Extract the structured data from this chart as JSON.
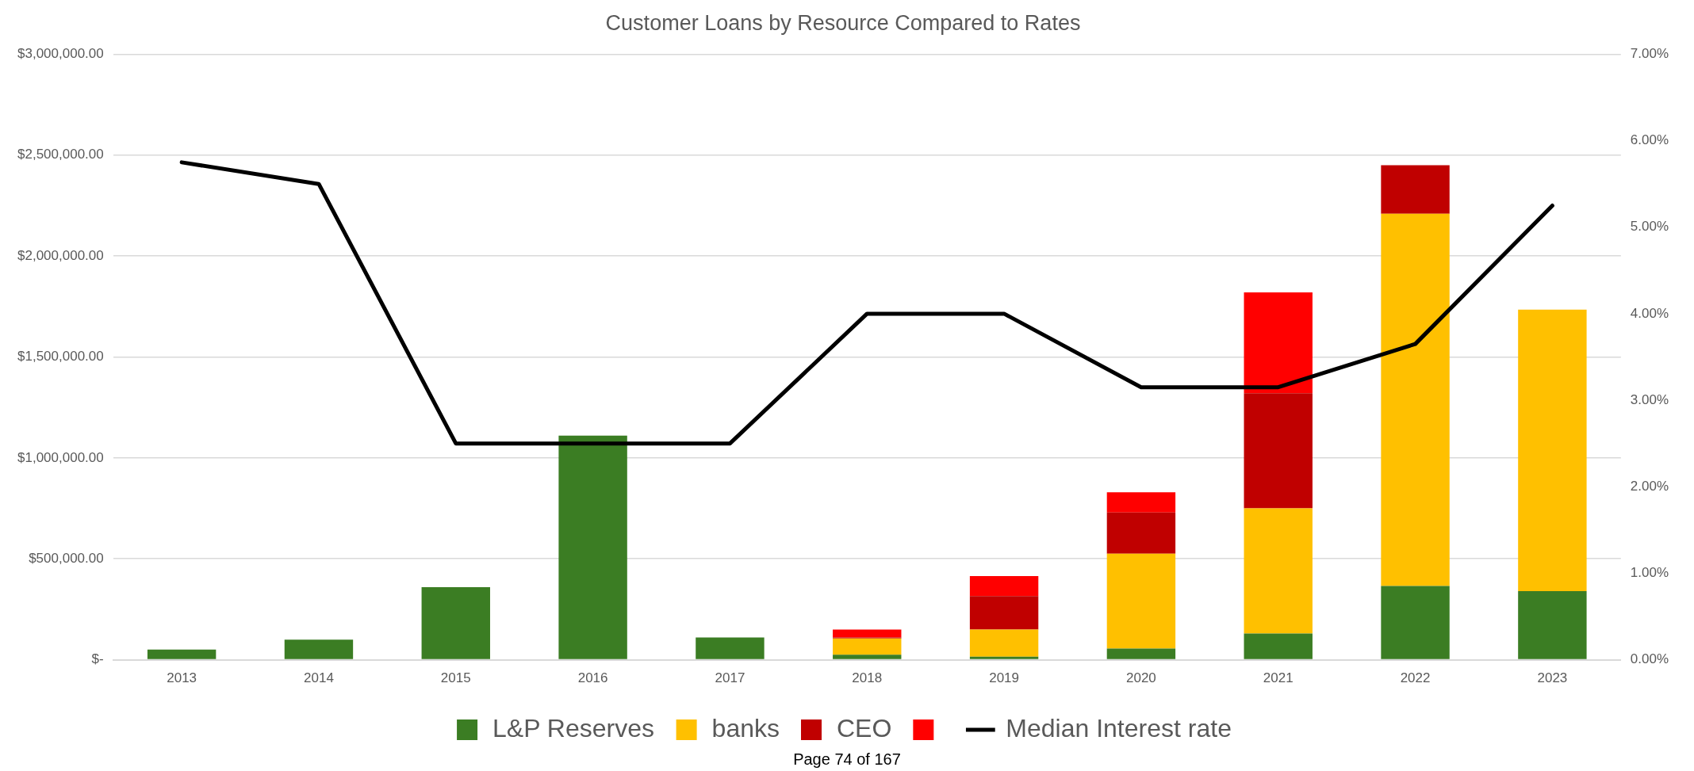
{
  "chart_data": {
    "type": "bar",
    "title": "Customer Loans by Resource Compared to Rates",
    "categories": [
      "2013",
      "2014",
      "2015",
      "2016",
      "2017",
      "2018",
      "2019",
      "2020",
      "2021",
      "2022",
      "2023"
    ],
    "stacked": true,
    "series": [
      {
        "name": "L&P Reserves",
        "color": "#3b7d23",
        "values": [
          50000,
          100000,
          360000,
          1110000,
          110000,
          25000,
          15000,
          55000,
          130000,
          365000,
          340000
        ]
      },
      {
        "name": "banks",
        "color": "#ffc000",
        "values": [
          null,
          null,
          null,
          null,
          null,
          80000,
          135000,
          470000,
          620000,
          1845000,
          1395000
        ]
      },
      {
        "name": "CEO",
        "color": "#c00000",
        "values": [
          null,
          null,
          null,
          null,
          null,
          5000,
          165000,
          205000,
          570000,
          240000,
          null
        ]
      },
      {
        "color": "#ff0000",
        "values": [
          null,
          null,
          null,
          null,
          null,
          40000,
          100000,
          100000,
          500000,
          null,
          null
        ]
      },
      {
        "name": "Median Interest rate",
        "type": "line",
        "axis": "y2",
        "color": "#000000",
        "marker": "none",
        "values": [
          5.75,
          5.5,
          2.5,
          2.5,
          2.5,
          4.0,
          4.0,
          3.15,
          3.15,
          3.65,
          5.25
        ]
      }
    ],
    "ylim": [
      0,
      3000000
    ],
    "yticks": [
      {
        "value": 0,
        "label": "$-"
      },
      {
        "value": 500000,
        "label": "$500,000.00"
      },
      {
        "value": 1000000,
        "label": "$1,000,000.00"
      },
      {
        "value": 1500000,
        "label": "$1,500,000.00"
      },
      {
        "value": 2000000,
        "label": "$2,000,000.00"
      },
      {
        "value": 2500000,
        "label": "$2,500,000.00"
      },
      {
        "value": 3000000,
        "label": "$3,000,000.00"
      }
    ],
    "y2lim": [
      0,
      7
    ],
    "y2ticks": [
      {
        "value": 0,
        "label": "0.00%"
      },
      {
        "value": 1,
        "label": "1.00%"
      },
      {
        "value": 2,
        "label": "2.00%"
      },
      {
        "value": 3,
        "label": "3.00%"
      },
      {
        "value": 4,
        "label": "4.00%"
      },
      {
        "value": 5,
        "label": "5.00%"
      },
      {
        "value": 6,
        "label": "6.00%"
      },
      {
        "value": 7,
        "label": "7.00%"
      }
    ],
    "grid": "y",
    "legend": "bottom",
    "annotations": [
      "Page 74 of 167"
    ]
  }
}
